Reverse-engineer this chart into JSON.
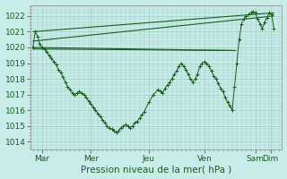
{
  "background_color": "#c8ede8",
  "grid_color": "#a0ccc8",
  "line_color": "#1a5e20",
  "ylim": [
    1013.5,
    1022.7
  ],
  "yticks": [
    1014,
    1015,
    1016,
    1017,
    1018,
    1019,
    1020,
    1021,
    1022
  ],
  "xlim": [
    -2,
    215
  ],
  "xtick_positions": [
    8,
    50,
    100,
    148,
    192,
    205
  ],
  "xtick_labels": [
    "Mar",
    "Mer",
    "Jeu",
    "Ven",
    "Sam",
    "Dim"
  ],
  "xlabel": "Pression niveau de la mer( hPa )",
  "ref_lines": [
    [
      [
        0,
        1021.0
      ],
      [
        200,
        1022.2
      ]
    ],
    [
      [
        0,
        1020.0
      ],
      [
        200,
        1019.8
      ]
    ],
    [
      [
        0,
        1020.3
      ],
      [
        200,
        1022.0
      ]
    ],
    [
      [
        0,
        1019.8
      ],
      [
        200,
        1019.8
      ]
    ]
  ],
  "main_series": [
    [
      0,
      1020.0
    ],
    [
      2,
      1021.0
    ],
    [
      4,
      1020.7
    ],
    [
      6,
      1020.2
    ],
    [
      8,
      1020.0
    ],
    [
      10,
      1019.9
    ],
    [
      12,
      1019.7
    ],
    [
      14,
      1019.5
    ],
    [
      16,
      1019.3
    ],
    [
      18,
      1019.1
    ],
    [
      20,
      1018.9
    ],
    [
      22,
      1018.6
    ],
    [
      24,
      1018.4
    ],
    [
      26,
      1018.1
    ],
    [
      28,
      1017.8
    ],
    [
      30,
      1017.5
    ],
    [
      32,
      1017.3
    ],
    [
      34,
      1017.1
    ],
    [
      36,
      1017.0
    ],
    [
      38,
      1017.1
    ],
    [
      40,
      1017.2
    ],
    [
      42,
      1017.1
    ],
    [
      44,
      1017.0
    ],
    [
      46,
      1016.8
    ],
    [
      48,
      1016.6
    ],
    [
      50,
      1016.4
    ],
    [
      52,
      1016.2
    ],
    [
      54,
      1016.0
    ],
    [
      56,
      1015.8
    ],
    [
      58,
      1015.6
    ],
    [
      60,
      1015.4
    ],
    [
      62,
      1015.2
    ],
    [
      64,
      1015.0
    ],
    [
      66,
      1014.9
    ],
    [
      68,
      1014.8
    ],
    [
      70,
      1014.7
    ],
    [
      72,
      1014.6
    ],
    [
      74,
      1014.7
    ],
    [
      76,
      1014.9
    ],
    [
      78,
      1015.0
    ],
    [
      80,
      1015.1
    ],
    [
      82,
      1015.0
    ],
    [
      84,
      1014.9
    ],
    [
      86,
      1015.0
    ],
    [
      88,
      1015.2
    ],
    [
      90,
      1015.3
    ],
    [
      92,
      1015.5
    ],
    [
      94,
      1015.7
    ],
    [
      96,
      1015.9
    ],
    [
      100,
      1016.5
    ],
    [
      104,
      1017.0
    ],
    [
      108,
      1017.3
    ],
    [
      110,
      1017.2
    ],
    [
      112,
      1017.1
    ],
    [
      114,
      1017.4
    ],
    [
      116,
      1017.6
    ],
    [
      118,
      1017.8
    ],
    [
      120,
      1018.0
    ],
    [
      122,
      1018.3
    ],
    [
      124,
      1018.5
    ],
    [
      126,
      1018.8
    ],
    [
      128,
      1019.0
    ],
    [
      130,
      1018.8
    ],
    [
      132,
      1018.6
    ],
    [
      134,
      1018.3
    ],
    [
      136,
      1018.0
    ],
    [
      138,
      1017.8
    ],
    [
      140,
      1018.0
    ],
    [
      142,
      1018.3
    ],
    [
      144,
      1018.8
    ],
    [
      146,
      1019.0
    ],
    [
      148,
      1019.1
    ],
    [
      150,
      1019.0
    ],
    [
      152,
      1018.8
    ],
    [
      154,
      1018.5
    ],
    [
      156,
      1018.2
    ],
    [
      158,
      1018.0
    ],
    [
      160,
      1017.7
    ],
    [
      162,
      1017.4
    ],
    [
      164,
      1017.2
    ],
    [
      166,
      1016.8
    ],
    [
      168,
      1016.5
    ],
    [
      170,
      1016.3
    ],
    [
      172,
      1016.0
    ],
    [
      174,
      1017.5
    ],
    [
      176,
      1019.0
    ],
    [
      178,
      1020.5
    ],
    [
      180,
      1021.5
    ],
    [
      182,
      1021.8
    ],
    [
      184,
      1022.0
    ],
    [
      186,
      1022.1
    ],
    [
      188,
      1022.2
    ],
    [
      190,
      1022.3
    ],
    [
      192,
      1022.2
    ],
    [
      194,
      1021.8
    ],
    [
      196,
      1021.5
    ],
    [
      198,
      1021.2
    ],
    [
      200,
      1021.6
    ],
    [
      202,
      1021.9
    ],
    [
      204,
      1022.2
    ],
    [
      206,
      1022.1
    ],
    [
      208,
      1021.2
    ]
  ]
}
